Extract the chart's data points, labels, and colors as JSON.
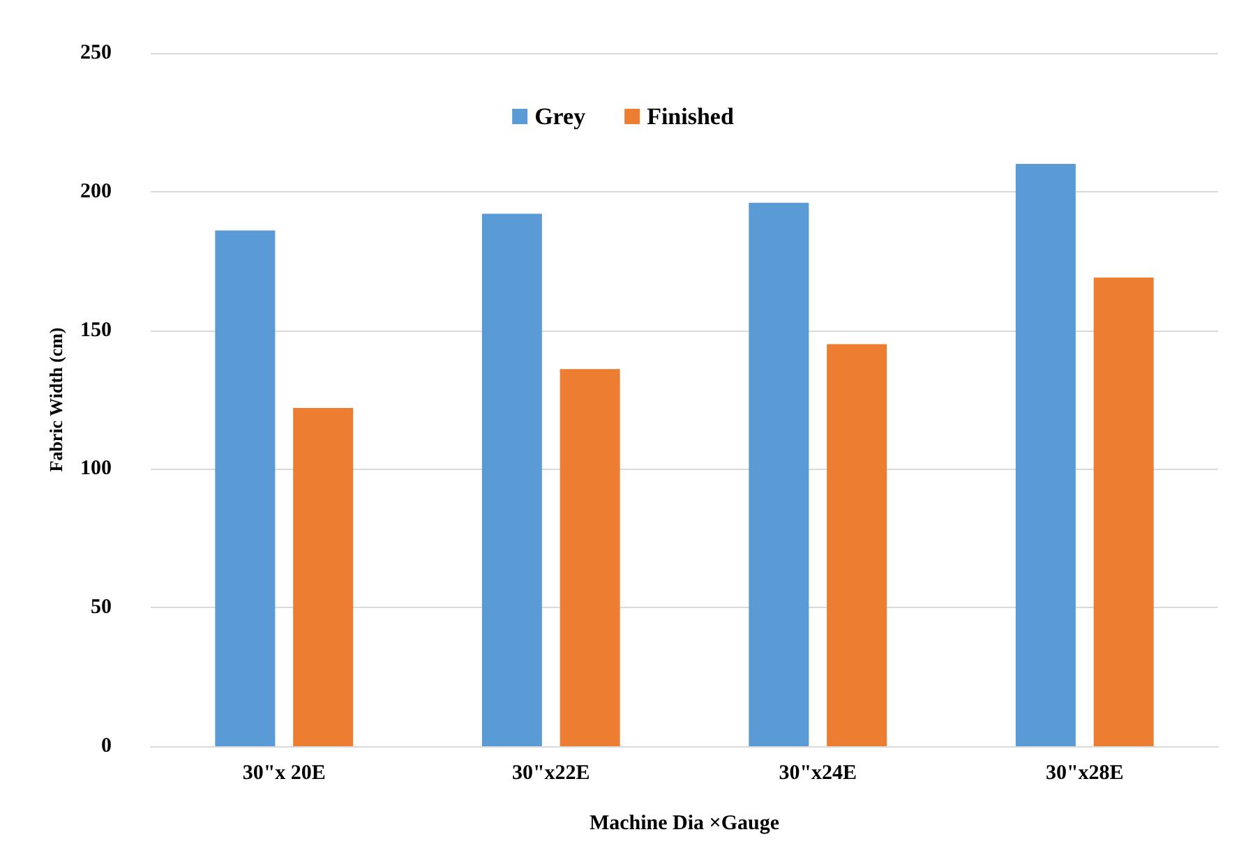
{
  "chart_data": {
    "type": "bar",
    "xlabel": "Machine Dia ×Gauge",
    "ylabel": "Fabric Width (cm)",
    "categories": [
      "30\"x 20E",
      "30\"x22E",
      "30\"x24E",
      "30\"x28E"
    ],
    "series": [
      {
        "name": "Grey",
        "color": "#5b9bd5",
        "values": [
          186,
          192,
          196,
          210
        ]
      },
      {
        "name": "Finished",
        "color": "#ed7d31",
        "values": [
          122,
          136,
          145,
          169
        ]
      }
    ],
    "ylim": [
      0,
      250
    ],
    "yticks": [
      0,
      50,
      100,
      150,
      200,
      250
    ],
    "grid": "y",
    "legend": "top"
  }
}
